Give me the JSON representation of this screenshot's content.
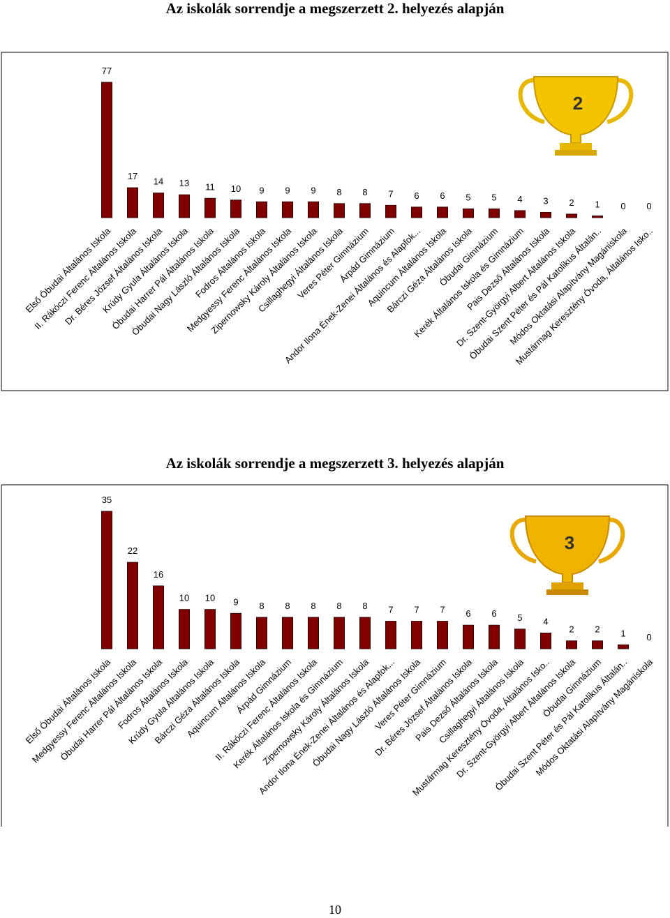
{
  "chart_data": [
    {
      "type": "bar",
      "title": "Az iskolák sorrendje a megszerzett 2. helyezés alapján",
      "badge": "2",
      "color": "#800000",
      "categories": [
        "Első Óbudai Általános Iskola",
        "II. Rákóczi Ferenc Általános Iskola",
        "Dr. Béres József Általános Iskola",
        "Krúdy Gyula Általános Iskola",
        "Óbudai Harrer Pál Általános Iskola",
        "Óbudai Nagy László Általános Iskola",
        "Fodros Általános Iskola",
        "Medgyessy Ferenc Általános Iskola",
        "Zipernowsky Károly Általános Iskola",
        "Csillaghegyi Általános Iskola",
        "Veres Péter Gimnázium",
        "Árpád Gimnázium",
        "Andor Ilona Ének-Zenei Általános és  Alapfok...",
        "Aquincum Általános Iskola",
        "Bárczi Géza Általános Iskola",
        "Óbudai Gimnázium",
        "Kerék Általános Iskola és Gimnázium",
        "Pais Dezső Általános Iskola",
        "Dr. Szent-Györgyi Albert Általános Iskola",
        "Óbudai Szent Péter és Pál  Katolikus Általán..",
        "Módos Oktatási Alapítvány Magániskola",
        "Mustármag Keresztény Óvoda, Általános  Isko.."
      ],
      "values": [
        77,
        17,
        14,
        13,
        11,
        10,
        9,
        9,
        9,
        8,
        8,
        7,
        6,
        6,
        5,
        5,
        4,
        3,
        2,
        1,
        0,
        0
      ]
    },
    {
      "type": "bar",
      "title": "Az iskolák sorrendje a megszerzett 3. helyezés alapján",
      "badge": "3",
      "color": "#800000",
      "categories": [
        "Első Óbudai Általános Iskola",
        "Medgyessy Ferenc Általános Iskola",
        "Óbudai Harrer Pál Általános Iskola",
        "Fodros Általános Iskola",
        "Krúdy Gyula Általános Iskola",
        "Bárczi Géza Általános Iskola",
        "Aquincum Általános Iskola",
        "Árpád Gimnázium",
        "II. Rákóczi Ferenc Általános Iskola",
        "Kerék Általános Iskola és Gimnázium",
        "Zipernowsky Károly Általános Iskola",
        "Andor Ilona Ének-Zenei Általános és  Alapfok...",
        "Óbudai Nagy László Általános Iskola",
        "Veres Péter Gimnázium",
        "Dr. Béres József Általános Iskola",
        "Pais Dezső Általános Iskola",
        "Csillaghegyi Általános Iskola",
        "Mustármag Keresztény Óvoda, Általános  Isko..",
        "Dr. Szent-Györgyi Albert Általános Iskola",
        "Óbudai Gimnázium",
        "Óbudai Szent Péter és Pál  Katolikus Általán..",
        "Módos Oktatási Alapítvány Magániskola"
      ],
      "values": [
        35,
        22,
        16,
        10,
        10,
        9,
        8,
        8,
        8,
        8,
        8,
        7,
        7,
        7,
        6,
        6,
        5,
        4,
        2,
        2,
        1,
        0
      ]
    }
  ],
  "page_number": "10"
}
